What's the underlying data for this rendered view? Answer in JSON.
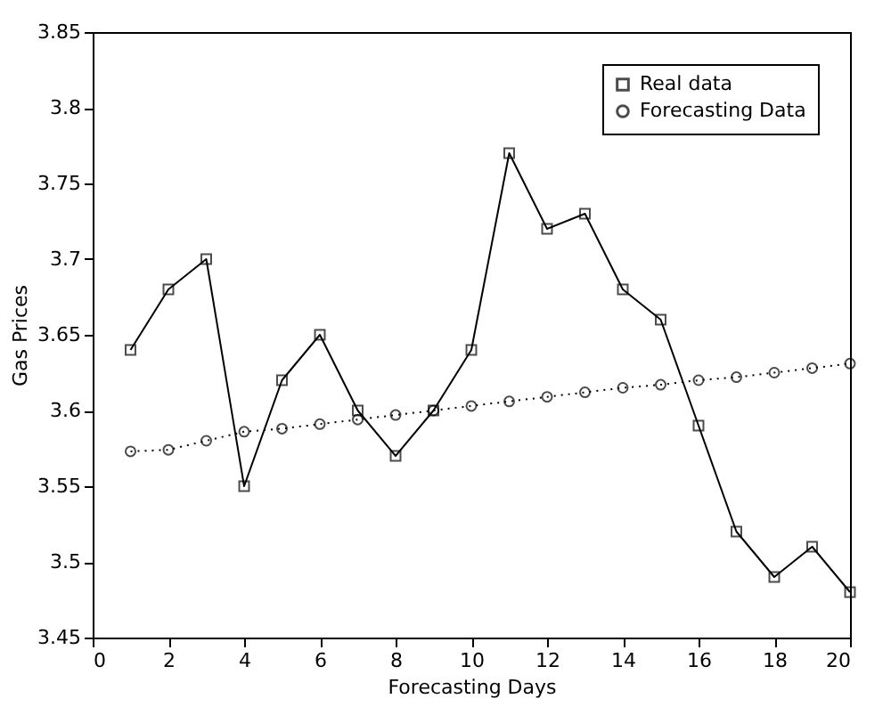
{
  "chart_data": {
    "type": "line",
    "xlabel": "Forecasting Days",
    "ylabel": "Gas Prices",
    "x": [
      1,
      2,
      3,
      4,
      5,
      6,
      7,
      8,
      9,
      10,
      11,
      12,
      13,
      14,
      15,
      16,
      17,
      18,
      19,
      20
    ],
    "series": [
      {
        "name": "Real data",
        "color": "#000000",
        "marker": "square",
        "line_style": "solid",
        "values": [
          3.64,
          3.68,
          3.7,
          3.55,
          3.62,
          3.65,
          3.6,
          3.57,
          3.6,
          3.64,
          3.77,
          3.72,
          3.73,
          3.68,
          3.66,
          3.59,
          3.52,
          3.49,
          3.51,
          3.48
        ]
      },
      {
        "name": "Forecasting Data",
        "color": "#000000",
        "marker": "circle",
        "line_style": "dotted",
        "values": [
          3.573,
          3.574,
          3.58,
          3.586,
          3.588,
          3.591,
          3.594,
          3.597,
          3.6,
          3.603,
          3.606,
          3.609,
          3.612,
          3.615,
          3.617,
          3.62,
          3.622,
          3.625,
          3.628,
          3.631
        ]
      }
    ],
    "xlim": [
      0,
      20
    ],
    "xticks": [
      0,
      2,
      4,
      6,
      8,
      10,
      12,
      14,
      16,
      18,
      20
    ],
    "ylim": [
      3.45,
      3.85
    ],
    "yticks": [
      3.45,
      3.5,
      3.55,
      3.6,
      3.65,
      3.7,
      3.75,
      3.8,
      3.85
    ],
    "grid": false,
    "legend": "top right"
  }
}
